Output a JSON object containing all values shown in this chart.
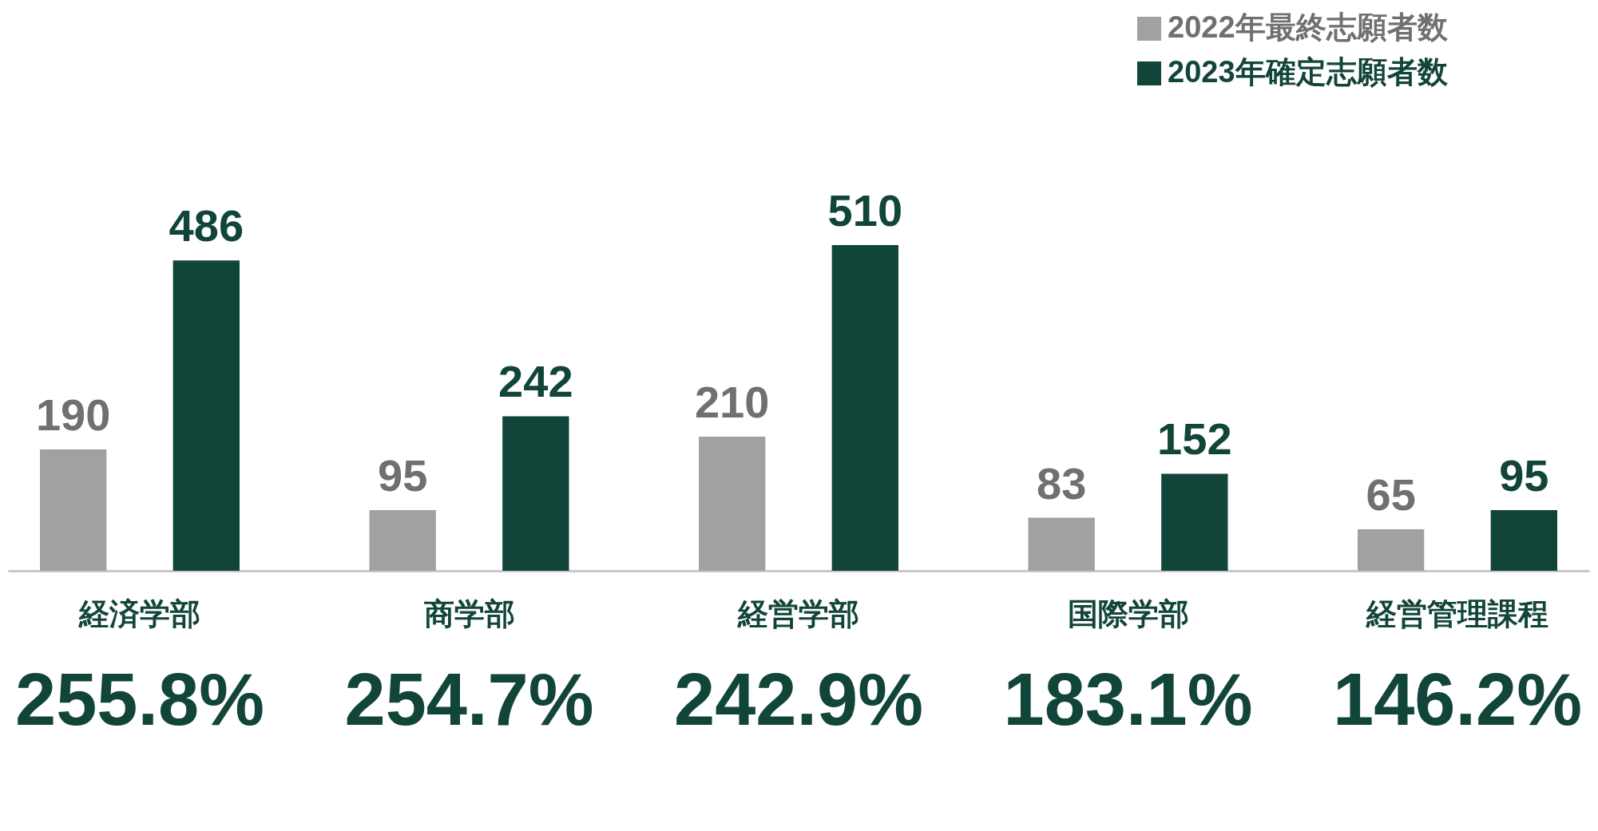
{
  "chart_data": {
    "type": "bar",
    "categories": [
      "経済学部",
      "商学部",
      "経営学部",
      "国際学部",
      "経営管理課程"
    ],
    "series": [
      {
        "name": "2022年最終志願者数",
        "color": "#a0a1a0",
        "values": [
          190,
          95,
          210,
          83,
          65
        ]
      },
      {
        "name": "2023年確定志願者数",
        "color": "#12453a",
        "values": [
          486,
          242,
          510,
          152,
          95
        ]
      }
    ],
    "data_labels": true,
    "legend": "top right",
    "annotations": [
      "255.8%",
      "254.7%",
      "242.9%",
      "183.1%",
      "146.2%"
    ]
  }
}
